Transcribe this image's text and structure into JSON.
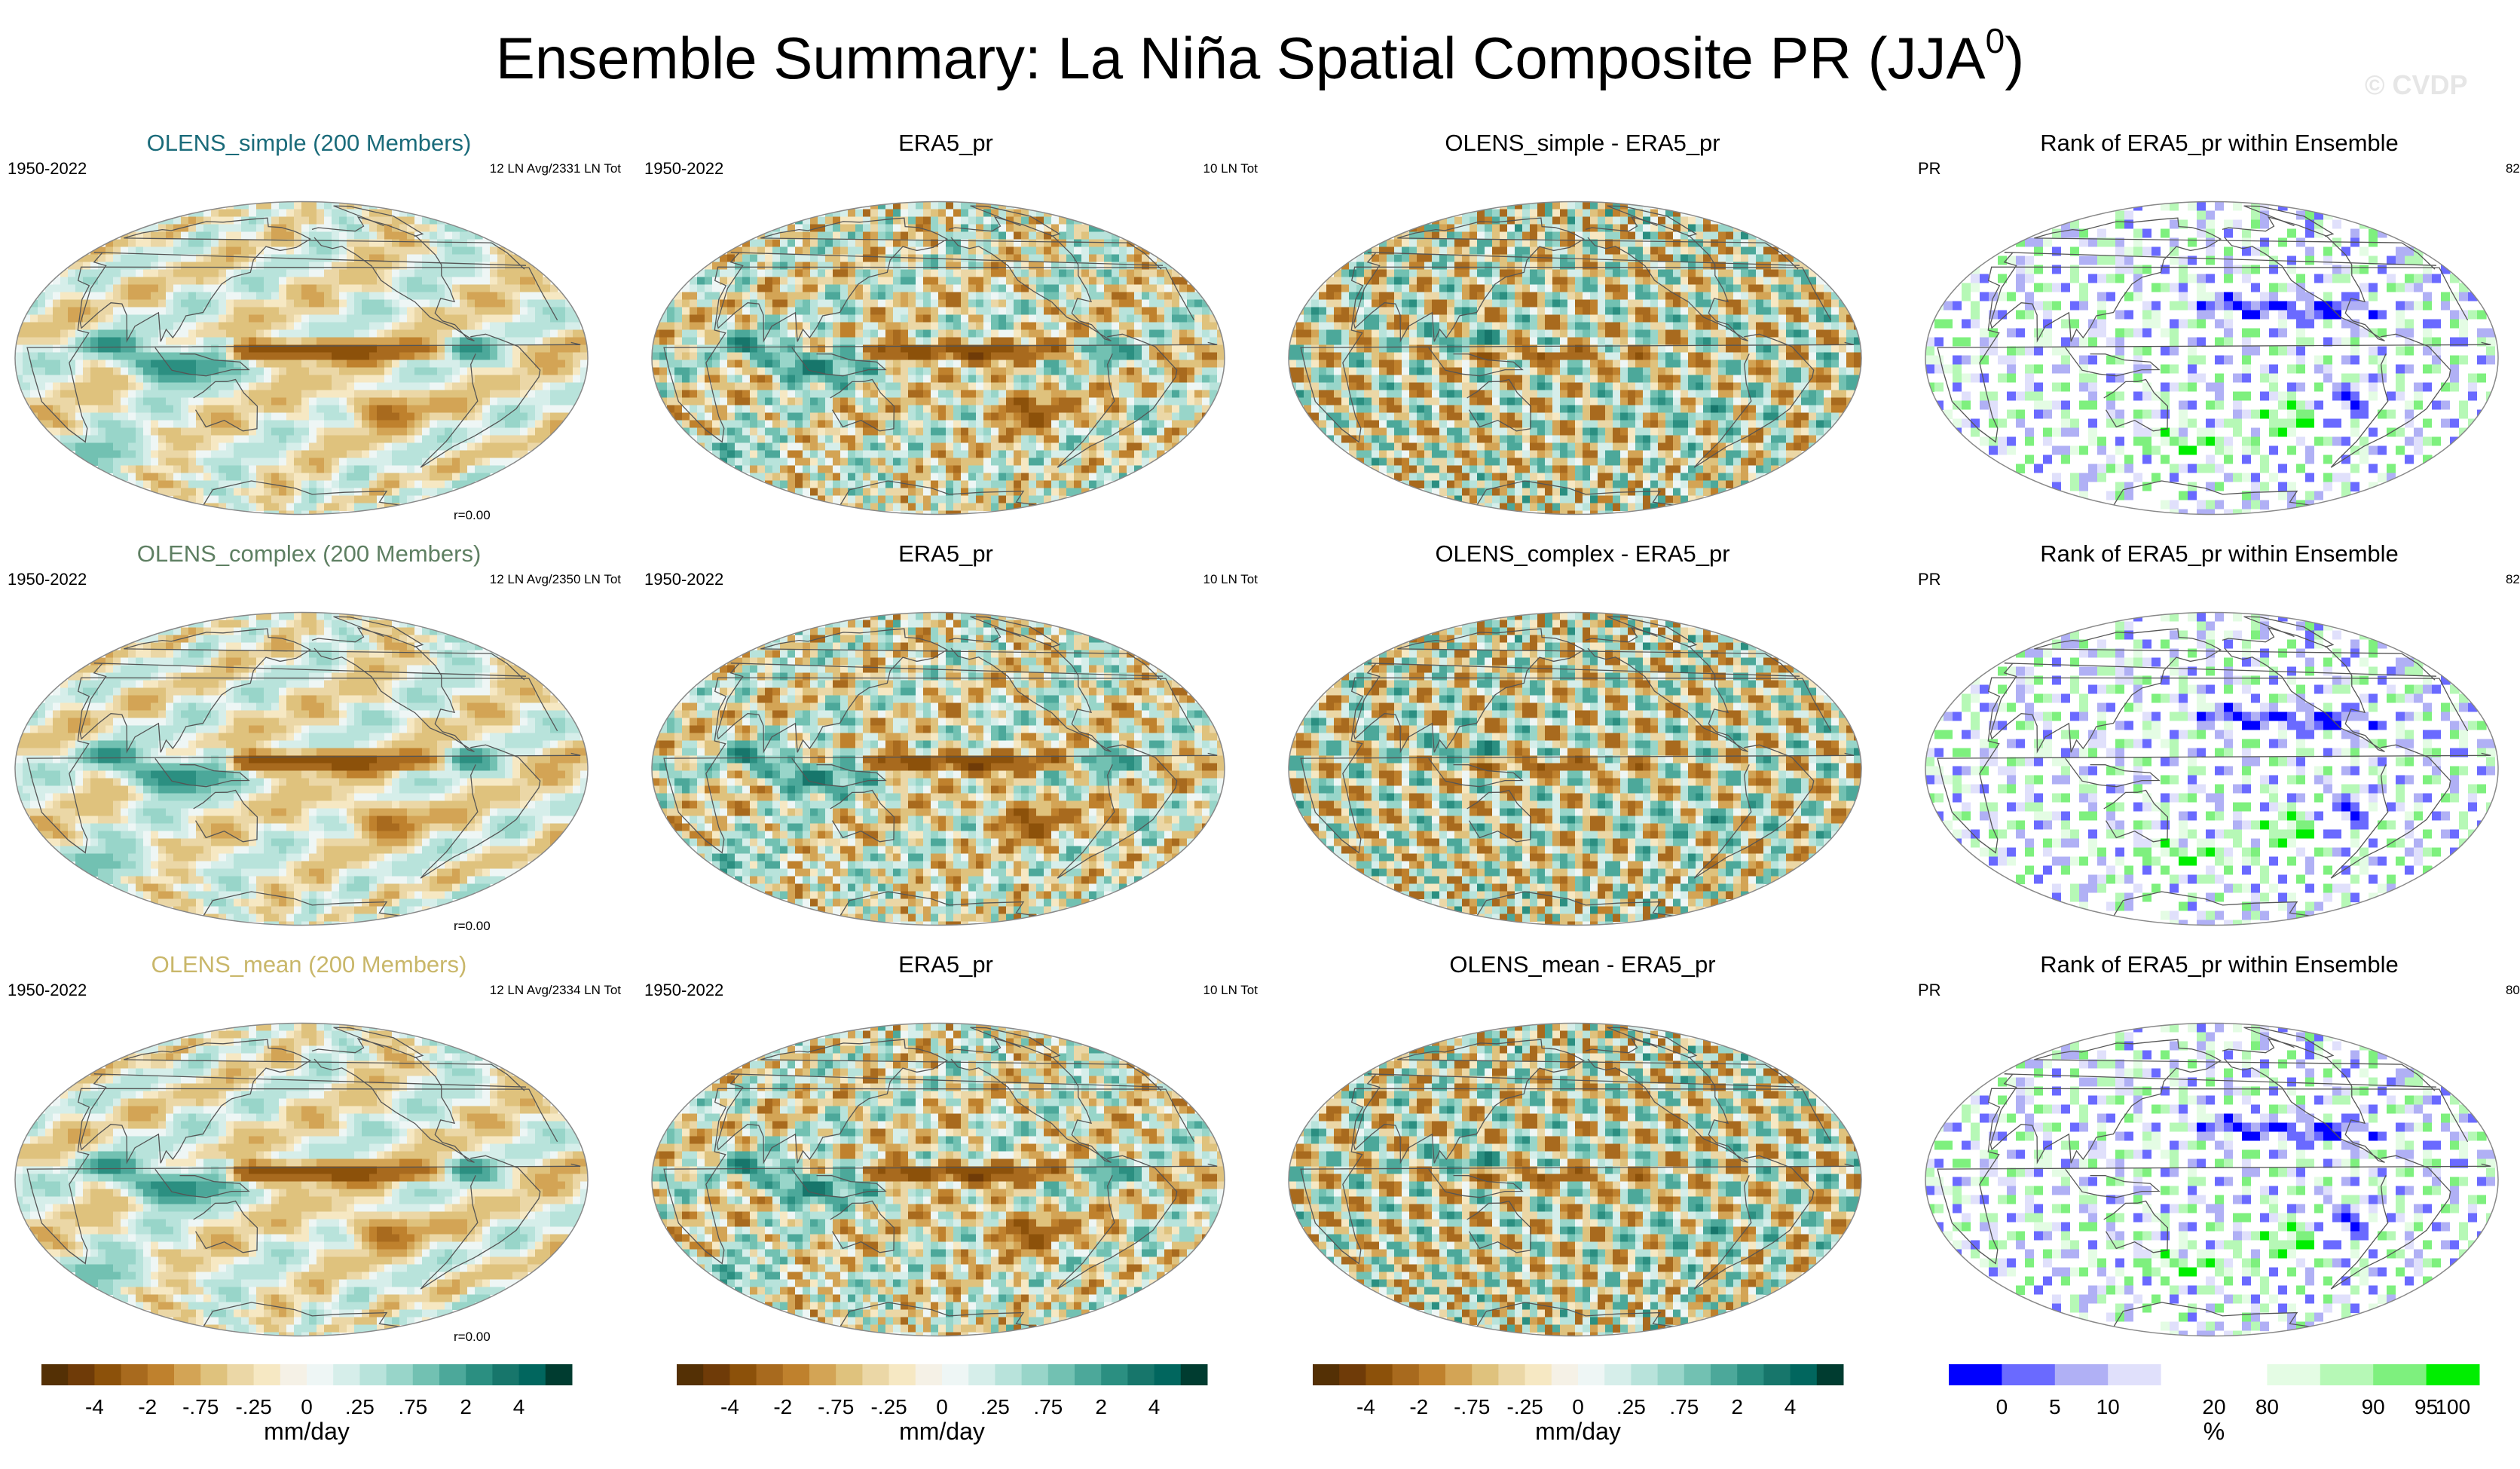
{
  "title": "Ensemble Summary: La Niña Spatial Composite PR (JJA",
  "title_superscript": "0",
  "title_close": ")",
  "watermark": "© CVDP",
  "colors": {
    "diverging": [
      "#543005",
      "#6f3b08",
      "#8c510a",
      "#a86a1e",
      "#bf812d",
      "#d3a455",
      "#dfc27d",
      "#ebd7a6",
      "#f6e8c3",
      "#f5f1e6",
      "#eef6f5",
      "#d6eeea",
      "#b8e3db",
      "#98d5c9",
      "#72c1b2",
      "#4ca89a",
      "#2b8f81",
      "#17766b",
      "#01665e",
      "#003c30"
    ],
    "rank": [
      "#0000ff",
      "#6a6aff",
      "#b0b0f5",
      "#e0e0fb",
      "#ffffff",
      "#ffffff",
      "#e4fce4",
      "#b6f8b6",
      "#7ef07e",
      "#00ee00"
    ],
    "title_row1": "#1a6b7a",
    "title_row2": "#5e7f62",
    "title_row3": "#c9b76a"
  },
  "rows": [
    {
      "model_title": "OLENS_simple (200 Members)",
      "period": "1950-2022",
      "events": "12 LN Avg/2331 LN Tot",
      "corr": "r=0.00",
      "obs_title": "ERA5_pr",
      "obs_period": "1950-2022",
      "obs_events": "10 LN Tot",
      "diff_title": "OLENS_simple - ERA5_pr",
      "rank_title": "Rank of ERA5_pr within Ensemble",
      "rank_var": "PR",
      "rank_pct": "82%"
    },
    {
      "model_title": "OLENS_complex (200 Members)",
      "period": "1950-2022",
      "events": "12 LN Avg/2350 LN Tot",
      "corr": "r=0.00",
      "obs_title": "ERA5_pr",
      "obs_period": "1950-2022",
      "obs_events": "10 LN Tot",
      "diff_title": "OLENS_complex - ERA5_pr",
      "rank_title": "Rank of ERA5_pr within Ensemble",
      "rank_var": "PR",
      "rank_pct": "82%"
    },
    {
      "model_title": "OLENS_mean (200 Members)",
      "period": "1950-2022",
      "events": "12 LN Avg/2334 LN Tot",
      "corr": "r=0.00",
      "obs_title": "ERA5_pr",
      "obs_period": "1950-2022",
      "obs_events": "10 LN Tot",
      "diff_title": "OLENS_mean - ERA5_pr",
      "rank_title": "Rank of ERA5_pr within Ensemble",
      "rank_var": "PR",
      "rank_pct": "80%"
    }
  ],
  "colorbars": {
    "diverging_ticks": [
      "-4",
      "-2",
      "-.75",
      "-.25",
      "0",
      ".25",
      ".75",
      "2",
      "4"
    ],
    "diverging_units": "mm/day",
    "rank_ticks": [
      "0",
      "5",
      "10",
      "20",
      "80",
      "90",
      "95",
      "100"
    ],
    "rank_units": "%"
  },
  "chart_data": {
    "type": "heatmap",
    "description_grid": "3 rows x 4 columns of global Hammer/Robinson-style map panels",
    "columns": [
      "ensemble composite",
      "observations",
      "difference",
      "rank"
    ],
    "diverging_levels_mm_per_day": [
      -4,
      -2,
      -0.75,
      -0.25,
      0,
      0.25,
      0.75,
      2,
      4
    ],
    "rank_levels_percent": [
      0,
      5,
      10,
      20,
      80,
      90,
      95,
      100
    ],
    "rank_summary_percent": [
      82,
      82,
      80
    ],
    "pattern_correlations": [
      "r=0.00",
      "r=0.00",
      "r=0.00"
    ],
    "features": [
      {
        "panel": "composite",
        "region": "equatorial central Pacific",
        "sign": "negative",
        "approx_value": -2
      },
      {
        "panel": "composite",
        "region": "Maritime Continent / Indian Ocean",
        "sign": "positive",
        "approx_value": 2
      },
      {
        "panel": "composite",
        "region": "South Pacific",
        "sign": "negative",
        "approx_value": -0.5
      },
      {
        "panel": "observations",
        "region": "equatorial central Pacific",
        "sign": "negative",
        "approx_value": -2
      },
      {
        "panel": "observations",
        "region": "South Pacific",
        "sign": "negative",
        "approx_value": -1
      },
      {
        "panel": "rank",
        "region": "Southern Ocean",
        "category": "90-100%"
      },
      {
        "panel": "rank",
        "region": "South Pacific",
        "category": "0-10%"
      }
    ]
  }
}
